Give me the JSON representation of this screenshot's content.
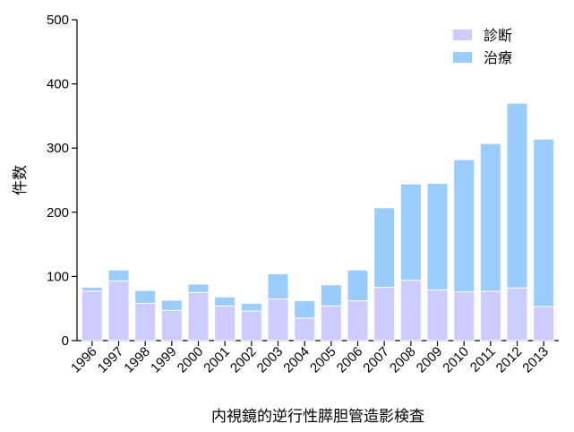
{
  "chart_data": {
    "type": "bar",
    "stacked": true,
    "categories": [
      "1996",
      "1997",
      "1998",
      "1999",
      "2000",
      "2001",
      "2002",
      "2003",
      "2004",
      "2005",
      "2006",
      "2007",
      "2008",
      "2009",
      "2010",
      "2011",
      "2012",
      "2013"
    ],
    "series": [
      {
        "name": "診断",
        "color": "#ccccff",
        "values": [
          77,
          93,
          58,
          47,
          75,
          54,
          46,
          65,
          35,
          54,
          62,
          83,
          94,
          79,
          76,
          77,
          82,
          53
        ]
      },
      {
        "name": "治療",
        "color": "#99ccff",
        "values": [
          6,
          17,
          20,
          16,
          13,
          14,
          12,
          39,
          27,
          33,
          48,
          124,
          150,
          166,
          206,
          230,
          288,
          261
        ]
      }
    ],
    "xlabel": "内視鏡的逆行性膵胆管造影検査",
    "ylabel": "件数",
    "ylim": [
      0,
      500
    ],
    "yticks": [
      0,
      100,
      200,
      300,
      400,
      500
    ],
    "grid": false,
    "legend": "top-right"
  }
}
